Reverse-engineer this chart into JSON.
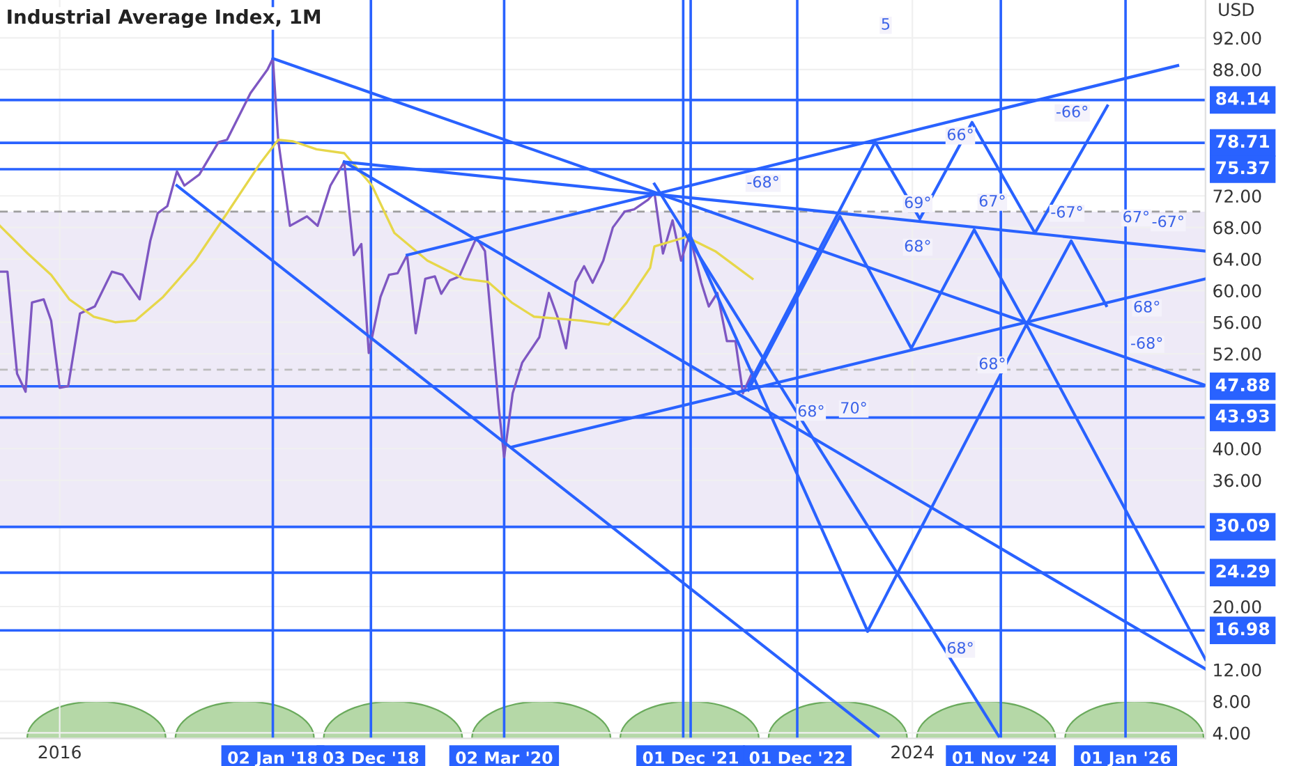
{
  "chart_data": {
    "type": "line",
    "title": "Industrial Average Index, 1M",
    "ylabel": "USD",
    "xlim": [
      2015.44,
      2026.75
    ],
    "ylim": [
      3.3,
      96.8
    ],
    "xticks": [
      2016,
      2024
    ],
    "yticks": [
      {
        "value": 4,
        "label": "4.00"
      },
      {
        "value": 8,
        "label": "8.00"
      },
      {
        "value": 12,
        "label": "12.00"
      },
      {
        "value": 20,
        "label": "20.00"
      },
      {
        "value": 36,
        "label": "36.00"
      },
      {
        "value": 40,
        "label": "40.00"
      },
      {
        "value": 52,
        "label": "52.00"
      },
      {
        "value": 56,
        "label": "56.00"
      },
      {
        "value": 60,
        "label": "60.00"
      },
      {
        "value": 64,
        "label": "64.00"
      },
      {
        "value": 68,
        "label": "68.00"
      },
      {
        "value": 72,
        "label": "72.00"
      },
      {
        "value": 88,
        "label": "88.00"
      },
      {
        "value": 92,
        "label": "92.00"
      }
    ],
    "grid": true,
    "marker": "none",
    "series": [
      {
        "color": "#7e57c2",
        "x": [
          2015.44,
          2015.51,
          2015.6,
          2015.68,
          2015.74,
          2015.85,
          2015.92,
          2016.0,
          2016.08,
          2016.19,
          2016.33,
          2016.49,
          2016.59,
          2016.75,
          2016.85,
          2016.92,
          2017.01,
          2017.1,
          2017.17,
          2017.31,
          2017.49,
          2017.57,
          2017.79,
          2017.95,
          2018.0,
          2018.05,
          2018.16,
          2018.32,
          2018.42,
          2018.54,
          2018.67,
          2018.76,
          2018.83,
          2018.9,
          2019.01,
          2019.09,
          2019.17,
          2019.26,
          2019.34,
          2019.43,
          2019.52,
          2019.58,
          2019.66,
          2019.75,
          2019.91,
          2019.99,
          2020.12,
          2020.17,
          2020.25,
          2020.34,
          2020.5,
          2020.59,
          2020.67,
          2020.75,
          2020.84,
          2020.92,
          2021.0,
          2021.1,
          2021.19,
          2021.3,
          2021.39,
          2021.52,
          2021.58,
          2021.66,
          2021.75,
          2021.83,
          2021.91,
          2022.02,
          2022.09,
          2022.17,
          2022.26,
          2022.34,
          2022.41,
          2022.5
        ],
        "values": [
          62.4,
          62.4,
          49.5,
          47.2,
          58.5,
          58.9,
          56.2,
          47.7,
          47.9,
          57.1,
          58.0,
          62.4,
          62.0,
          58.9,
          66.3,
          69.8,
          70.7,
          75.1,
          73.3,
          74.7,
          78.8,
          79.1,
          85.0,
          88.0,
          89.4,
          79.1,
          68.2,
          69.4,
          68.2,
          73.3,
          76.3,
          64.5,
          65.9,
          52.1,
          59.2,
          62.0,
          62.2,
          64.5,
          54.6,
          61.5,
          61.8,
          59.6,
          61.3,
          61.8,
          66.7,
          65.0,
          45.1,
          38.9,
          47.0,
          50.9,
          54.1,
          59.7,
          56.7,
          52.7,
          61.1,
          63.1,
          61.0,
          63.8,
          68.0,
          70.0,
          70.3,
          71.5,
          72.4,
          64.7,
          68.9,
          63.8,
          67.1,
          61.0,
          58.0,
          59.7,
          53.6,
          53.6,
          47.0,
          49.7
        ]
      },
      {
        "color": "#e6d74a",
        "x": [
          2015.44,
          2015.7,
          2015.92,
          2016.09,
          2016.32,
          2016.52,
          2016.71,
          2016.97,
          2017.27,
          2017.57,
          2017.88,
          2018.05,
          2018.19,
          2018.41,
          2018.67,
          2018.93,
          2019.14,
          2019.45,
          2019.79,
          2020.02,
          2020.24,
          2020.45,
          2020.89,
          2021.15,
          2021.32,
          2021.54,
          2021.58,
          2021.88,
          2022.15,
          2022.5
        ],
        "values": [
          68.2,
          64.7,
          62.0,
          58.9,
          56.7,
          56.0,
          56.2,
          59.2,
          63.8,
          69.8,
          76.1,
          79.1,
          78.9,
          77.9,
          77.4,
          73.3,
          67.3,
          63.8,
          61.5,
          61.1,
          58.5,
          56.7,
          56.2,
          55.7,
          58.5,
          62.9,
          65.6,
          66.8,
          65.0,
          61.5
        ]
      },
      {
        "color": "#2962ff",
        "x": [
          2018.0,
          2026.75
        ],
        "values": [
          89.4,
          48.0
        ]
      },
      {
        "color": "#2962ff",
        "x": [
          2018.67,
          2026.75
        ],
        "values": [
          76.3,
          65.0
        ]
      },
      {
        "color": "#2962ff",
        "x": [
          2018.67,
          2026.75
        ],
        "values": [
          76.3,
          12.1
        ]
      },
      {
        "color": "#2962ff",
        "x": [
          2017.1,
          2023.68
        ],
        "values": [
          73.3,
          3.6
        ]
      },
      {
        "color": "#2962ff",
        "x": [
          2020.24,
          2026.75
        ],
        "values": [
          40.2,
          61.5
        ]
      },
      {
        "color": "#2962ff",
        "x": [
          2019.26,
          2026.49
        ],
        "values": [
          64.5,
          88.5
        ]
      },
      {
        "color": "#2962ff",
        "x": [
          2021.58,
          2024.81
        ],
        "values": [
          73.5,
          3.6
        ]
      },
      {
        "color": "#2962ff",
        "x": [
          2021.91,
          2023.58
        ],
        "values": [
          67.1,
          16.9
        ]
      },
      {
        "color": "#2962ff",
        "x": [
          2022.46,
          2023.65,
          2024.07,
          2024.56,
          2025.15,
          2025.83
        ],
        "values": [
          47.9,
          78.8,
          69.1,
          81.3,
          67.3,
          83.4
        ]
      },
      {
        "color": "#2962ff",
        "x": [
          2022.46,
          2023.32,
          2023.99,
          2024.58,
          2025.07,
          2025.49,
          2025.82
        ],
        "values": [
          47.4,
          69.4,
          52.7,
          67.7,
          55.7,
          66.3,
          58.1
        ]
      },
      {
        "color": "#2962ff",
        "x": [
          2023.58,
          2025.07,
          2026.75
        ],
        "values": [
          16.9,
          55.7,
          13.3
        ]
      }
    ],
    "bands": [
      {
        "axis": "y",
        "from": 30,
        "to": 70,
        "color": "#eeeaf7"
      }
    ],
    "ref_lines": [
      {
        "axis": "y",
        "value": 70,
        "color": "#9e9e9e",
        "line_style": "dashed"
      },
      {
        "axis": "y",
        "value": 50,
        "color": "#bdbdbd",
        "line_style": "dashed"
      },
      {
        "axis": "y",
        "value": 84.14,
        "label": "84.14",
        "color": "#2962ff"
      },
      {
        "axis": "y",
        "value": 78.71,
        "label": "78.71",
        "color": "#2962ff"
      },
      {
        "axis": "y",
        "value": 75.37,
        "label": "75.37",
        "color": "#2962ff"
      },
      {
        "axis": "y",
        "value": 47.88,
        "label": "47.88",
        "color": "#2962ff"
      },
      {
        "axis": "y",
        "value": 43.93,
        "label": "43.93",
        "color": "#2962ff"
      },
      {
        "axis": "y",
        "value": 30.09,
        "label": "30.09",
        "color": "#2962ff"
      },
      {
        "axis": "y",
        "value": 24.29,
        "label": "24.29",
        "color": "#2962ff"
      },
      {
        "axis": "y",
        "value": 16.98,
        "label": "16.98",
        "color": "#2962ff"
      },
      {
        "axis": "x",
        "value": 2018.0,
        "label": "02 Jan '18",
        "color": "#2962ff"
      },
      {
        "axis": "x",
        "value": 2018.92,
        "label": "03 Dec '18",
        "color": "#2962ff"
      },
      {
        "axis": "x",
        "value": 2020.17,
        "label": "02 Mar '20",
        "color": "#2962ff"
      },
      {
        "axis": "x",
        "value": 2021.85,
        "color": "#2962ff"
      },
      {
        "axis": "x",
        "value": 2021.92,
        "label": "01 Dec '21",
        "color": "#2962ff"
      },
      {
        "axis": "x",
        "value": 2022.92,
        "label": "01 Dec '22",
        "color": "#2962ff"
      },
      {
        "axis": "x",
        "value": 2024.83,
        "label": "01 Nov '24",
        "color": "#2962ff"
      },
      {
        "axis": "x",
        "value": 2026.0,
        "label": "01 Jan '26",
        "color": "#2962ff"
      }
    ],
    "annotations": [
      "5",
      "-68°",
      "-66°",
      "66°",
      "69°",
      "68°",
      "67°",
      "-67°",
      "67°",
      "-67°",
      "68°",
      "-68°",
      "68°",
      "68°",
      "70°",
      "68°"
    ]
  }
}
